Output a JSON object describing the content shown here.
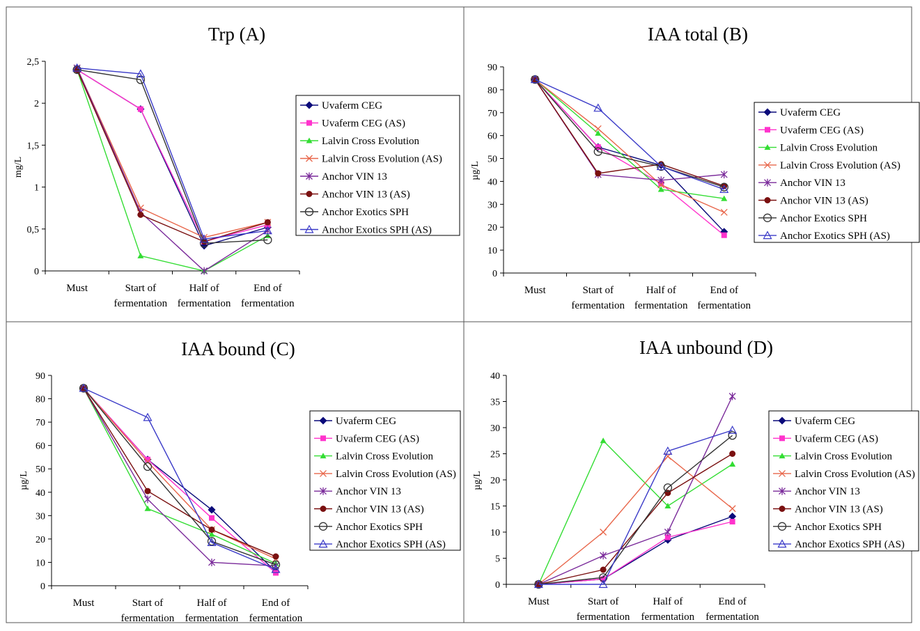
{
  "legend_series": [
    "Uvaferm CEG",
    "Uvaferm CEG (AS)",
    "Lalvin Cross Evolution",
    "Lalvin Cross Evolution (AS)",
    "Anchor VIN 13",
    "Anchor VIN 13 (AS)",
    "Anchor Exotics SPH",
    "Anchor Exotics SPH (AS)"
  ],
  "styles": [
    {
      "color": "#0a0a7a",
      "marker": "diamond"
    },
    {
      "color": "#ff33cc",
      "marker": "square"
    },
    {
      "color": "#33dd33",
      "marker": "triangle"
    },
    {
      "color": "#e8664a",
      "marker": "x"
    },
    {
      "color": "#7a2a9a",
      "marker": "star"
    },
    {
      "color": "#7a1010",
      "marker": "circle"
    },
    {
      "color": "#333333",
      "marker": "open-circle"
    },
    {
      "color": "#3a3ac8",
      "marker": "open-triangle"
    }
  ],
  "chart_data": [
    {
      "type": "line",
      "title": "Trp (A)",
      "ylabel": "mg/L",
      "categories": [
        [
          "Must"
        ],
        [
          "Start of",
          "fermentation"
        ],
        [
          "Half of",
          "fermentation"
        ],
        [
          "End of",
          "fermentation"
        ]
      ],
      "ylim": [
        0,
        2.5
      ],
      "ytick_values": [
        0,
        0.5,
        1,
        1.5,
        2,
        2.5
      ],
      "ytick_labels": [
        "0",
        "0,5",
        "1",
        "1,5",
        "2",
        "2,5"
      ],
      "series": [
        {
          "name": "Uvaferm CEG",
          "values": [
            2.4,
            1.93,
            0.3,
            0.52
          ]
        },
        {
          "name": "Uvaferm CEG (AS)",
          "values": [
            2.4,
            1.93,
            0.35,
            0.55
          ]
        },
        {
          "name": "Lalvin Cross Evolution",
          "values": [
            2.4,
            0.18,
            0.0,
            0.42
          ]
        },
        {
          "name": "Lalvin Cross Evolution (AS)",
          "values": [
            2.42,
            0.75,
            0.4,
            0.58
          ]
        },
        {
          "name": "Anchor VIN 13",
          "values": [
            2.42,
            0.7,
            0.0,
            0.48
          ]
        },
        {
          "name": "Anchor VIN 13 (AS)",
          "values": [
            2.4,
            0.67,
            0.35,
            0.58
          ]
        },
        {
          "name": "Anchor Exotics SPH",
          "values": [
            2.4,
            2.28,
            0.33,
            0.37
          ]
        },
        {
          "name": "Anchor Exotics SPH (AS)",
          "values": [
            2.42,
            2.35,
            0.38,
            0.48
          ]
        }
      ]
    },
    {
      "type": "line",
      "title": "IAA total (B)",
      "ylabel": "µg/L",
      "categories": [
        [
          "Must"
        ],
        [
          "Start of",
          "fermentation"
        ],
        [
          "Half of",
          "fermentation"
        ],
        [
          "End of",
          "fermentation"
        ]
      ],
      "ylim": [
        0,
        90
      ],
      "ytick_values": [
        0,
        10,
        20,
        30,
        40,
        50,
        60,
        70,
        80,
        90
      ],
      "ytick_labels": [
        "0",
        "10",
        "20",
        "30",
        "40",
        "50",
        "60",
        "70",
        "80",
        "90"
      ],
      "series": [
        {
          "name": "Uvaferm CEG",
          "values": [
            84.5,
            55,
            47,
            18
          ]
        },
        {
          "name": "Uvaferm CEG (AS)",
          "values": [
            84.5,
            55,
            39,
            16.5
          ]
        },
        {
          "name": "Lalvin Cross Evolution",
          "values": [
            84.5,
            61,
            36.5,
            32.5
          ]
        },
        {
          "name": "Lalvin Cross Evolution (AS)",
          "values": [
            84.5,
            63,
            38.5,
            26.5
          ]
        },
        {
          "name": "Anchor VIN 13",
          "values": [
            84.5,
            43,
            40.5,
            43
          ]
        },
        {
          "name": "Anchor VIN 13 (AS)",
          "values": [
            84.5,
            43.5,
            47.5,
            38
          ]
        },
        {
          "name": "Anchor Exotics SPH",
          "values": [
            84.5,
            53,
            46.5,
            37.5
          ]
        },
        {
          "name": "Anchor Exotics SPH (AS)",
          "values": [
            84.5,
            72,
            46.5,
            36.5
          ]
        }
      ]
    },
    {
      "type": "line",
      "title": "IAA bound (C)",
      "ylabel": "µg/L",
      "categories": [
        [
          "Must"
        ],
        [
          "Start of",
          "fermentation"
        ],
        [
          "Half of",
          "fermentation"
        ],
        [
          "End of",
          "fermentation"
        ]
      ],
      "ylim": [
        0,
        90
      ],
      "ytick_values": [
        0,
        10,
        20,
        30,
        40,
        50,
        60,
        70,
        80,
        90
      ],
      "ytick_labels": [
        "0",
        "10",
        "20",
        "30",
        "40",
        "50",
        "60",
        "70",
        "80",
        "90"
      ],
      "series": [
        {
          "name": "Uvaferm CEG",
          "values": [
            84.5,
            54,
            32.5,
            6
          ]
        },
        {
          "name": "Uvaferm CEG (AS)",
          "values": [
            84.5,
            54,
            29,
            5.5
          ]
        },
        {
          "name": "Lalvin Cross Evolution",
          "values": [
            84.5,
            33,
            22,
            9.5
          ]
        },
        {
          "name": "Lalvin Cross Evolution (AS)",
          "values": [
            84.5,
            53,
            24,
            11.5
          ]
        },
        {
          "name": "Anchor VIN 13",
          "values": [
            84.5,
            37,
            10,
            8.5
          ]
        },
        {
          "name": "Anchor VIN 13 (AS)",
          "values": [
            84.5,
            40.5,
            24,
            12.5
          ]
        },
        {
          "name": "Anchor Exotics SPH",
          "values": [
            84.5,
            51,
            19,
            9
          ]
        },
        {
          "name": "Anchor Exotics SPH (AS)",
          "values": [
            84.5,
            72,
            18.5,
            7
          ]
        }
      ]
    },
    {
      "type": "line",
      "title": "IAA unbound (D)",
      "ylabel": "µg/L",
      "categories": [
        [
          "Must"
        ],
        [
          "Start of",
          "fermentation"
        ],
        [
          "Half of",
          "fermentation"
        ],
        [
          "End of",
          "fermentation"
        ]
      ],
      "ylim": [
        0,
        40
      ],
      "ytick_values": [
        0,
        5,
        10,
        15,
        20,
        25,
        30,
        35,
        40
      ],
      "ytick_labels": [
        "0",
        "5",
        "10",
        "15",
        "20",
        "25",
        "30",
        "35",
        "40"
      ],
      "series": [
        {
          "name": "Uvaferm CEG",
          "values": [
            0,
            1,
            8.5,
            13
          ]
        },
        {
          "name": "Uvaferm CEG (AS)",
          "values": [
            0,
            1,
            9,
            12
          ]
        },
        {
          "name": "Lalvin Cross Evolution",
          "values": [
            0,
            27.5,
            15,
            23
          ]
        },
        {
          "name": "Lalvin Cross Evolution (AS)",
          "values": [
            0,
            10,
            24.5,
            14.5
          ]
        },
        {
          "name": "Anchor VIN 13",
          "values": [
            0,
            5.5,
            10,
            36
          ]
        },
        {
          "name": "Anchor VIN 13 (AS)",
          "values": [
            0,
            2.8,
            17.5,
            25
          ]
        },
        {
          "name": "Anchor Exotics SPH",
          "values": [
            0,
            1.3,
            18.5,
            28.5
          ]
        },
        {
          "name": "Anchor Exotics SPH (AS)",
          "values": [
            0,
            0,
            25.5,
            29.5
          ]
        }
      ]
    }
  ]
}
